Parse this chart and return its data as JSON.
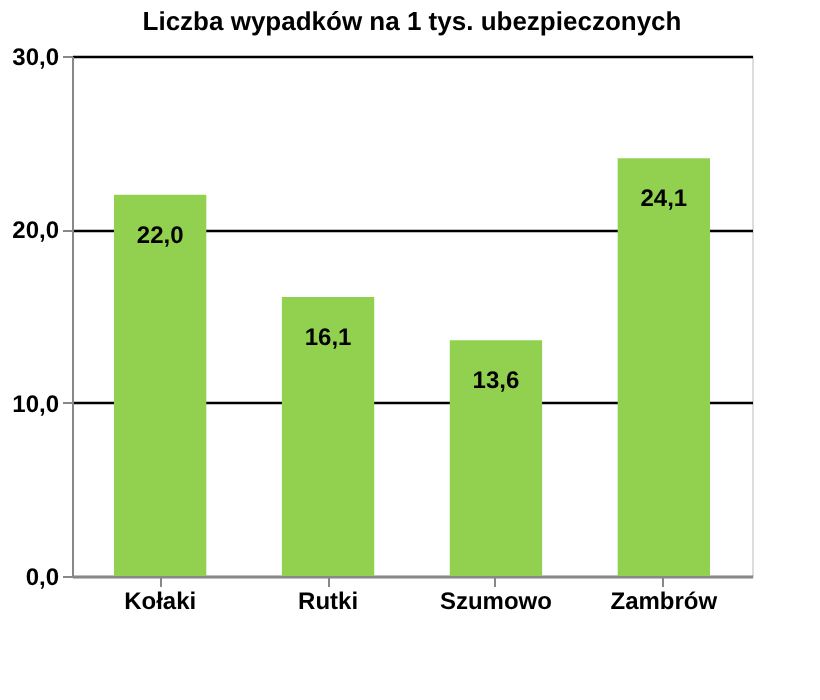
{
  "chart_data": {
    "type": "bar",
    "title": "Liczba wypadków na 1 tys. ubezpieczonych",
    "categories": [
      "Kołaki",
      "Rutki",
      "Szumowo",
      "Zambrów"
    ],
    "values": [
      22.0,
      16.1,
      13.6,
      24.1
    ],
    "value_labels": [
      "22,0",
      "16,1",
      "13,6",
      "24,1"
    ],
    "color": "#92d050",
    "ylim": [
      0,
      30
    ],
    "yticks": [
      {
        "value": 0,
        "label": "0,0"
      },
      {
        "value": 10,
        "label": "10,0"
      },
      {
        "value": 20,
        "label": "20,0"
      },
      {
        "value": 30,
        "label": "30,0"
      }
    ],
    "grid": "y"
  }
}
